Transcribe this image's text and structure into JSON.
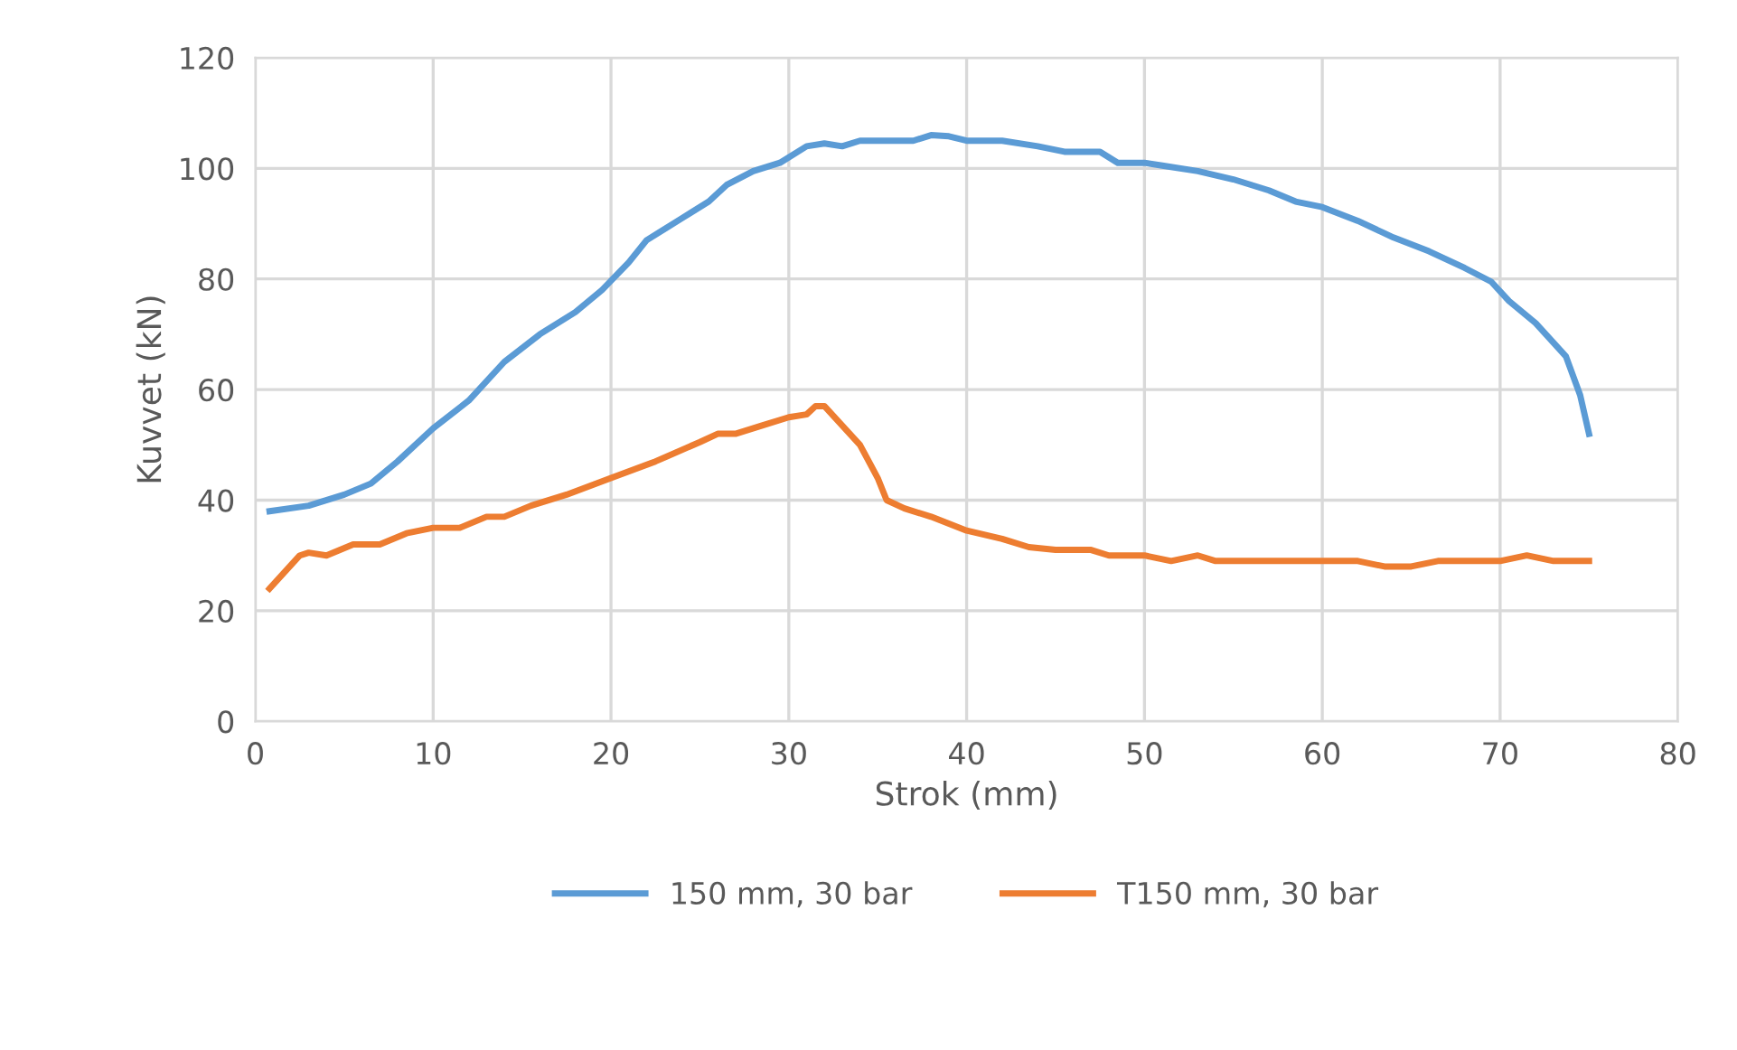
{
  "chart_data": {
    "type": "line",
    "xlabel": "Strok (mm)",
    "ylabel": "Kuvvet (kN)",
    "xlim": [
      0,
      80
    ],
    "xticks": [
      0,
      10,
      20,
      30,
      40,
      50,
      60,
      70,
      80
    ],
    "ylim": [
      0,
      120
    ],
    "yticks": [
      0,
      20,
      40,
      60,
      80,
      100,
      120
    ],
    "grid": true,
    "legend": "bottom",
    "marker": "none",
    "line_style": "solid",
    "series": [
      {
        "name": "150 mm, 30 bar",
        "color": "#5b9bd5",
        "x": [
          0.8,
          3,
          5,
          6.5,
          8,
          10,
          12,
          14,
          16,
          18,
          19.5,
          21,
          22,
          24,
          25.5,
          26.5,
          28,
          29.5,
          31,
          32,
          33,
          34,
          36,
          37,
          38,
          39,
          40,
          42,
          44,
          45.5,
          47.5,
          48.5,
          50,
          51,
          53,
          55,
          57,
          58.5,
          60,
          62,
          64,
          66,
          68,
          69.5,
          70.5,
          72,
          73.7,
          74.5,
          75
        ],
        "values": [
          38,
          39,
          41,
          43,
          47,
          53,
          58,
          65,
          70,
          74,
          78,
          83,
          87,
          91,
          94,
          97,
          99.5,
          101,
          104,
          104.5,
          104,
          105,
          105,
          105,
          106,
          105.8,
          105,
          105,
          104,
          103,
          103,
          101,
          101,
          100.5,
          99.5,
          98,
          96,
          94,
          93,
          90.5,
          87.5,
          85,
          82,
          79.5,
          76,
          72,
          66,
          59,
          52
        ]
      },
      {
        "name": "T150 mm, 30 bar",
        "color": "#ed7d31",
        "x": [
          0.8,
          2.5,
          3,
          4,
          5.5,
          7,
          8.5,
          10,
          11.5,
          13,
          14,
          15.5,
          17.5,
          20,
          22.5,
          25,
          26,
          27,
          28.5,
          30,
          31,
          31.5,
          32,
          33,
          34,
          35,
          35.5,
          36.5,
          38,
          40,
          42,
          43.5,
          45,
          47,
          48,
          50,
          51.5,
          53,
          54,
          57,
          60,
          62,
          63.5,
          65,
          66.5,
          70,
          71.5,
          73,
          75
        ],
        "values": [
          24,
          30,
          30.5,
          30,
          32,
          32,
          34,
          35,
          35,
          37,
          37,
          39,
          41,
          44,
          47,
          50.5,
          52,
          52,
          53.5,
          55,
          55.5,
          57,
          57,
          53.5,
          50,
          44,
          40,
          38.5,
          37,
          34.5,
          33,
          31.5,
          31,
          31,
          30,
          30,
          29,
          30,
          29,
          29,
          29,
          29,
          28,
          28,
          29,
          29,
          30,
          29,
          29
        ]
      }
    ]
  }
}
